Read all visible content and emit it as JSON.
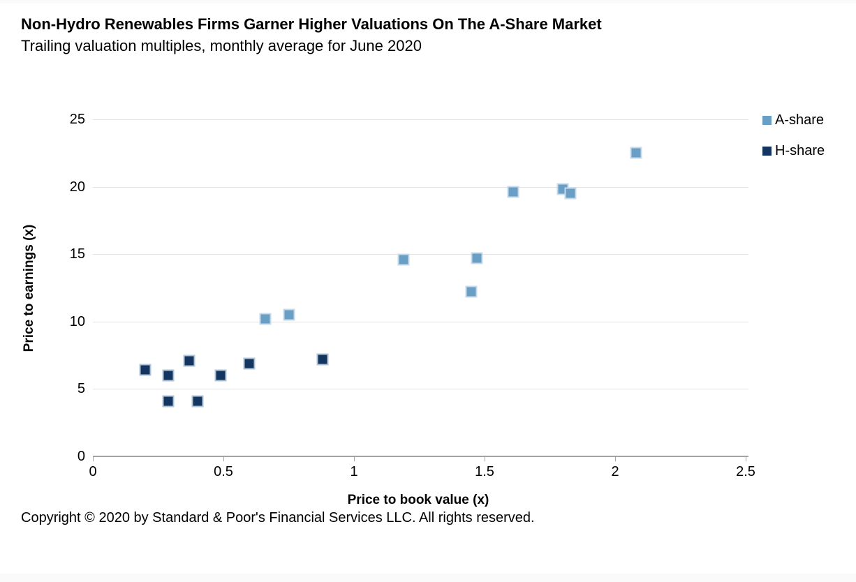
{
  "header": {
    "title": "Non-Hydro Renewables Firms Garner Higher Valuations On The A-Share Market",
    "subtitle": "Trailing valuation multiples, monthly average for June 2020"
  },
  "chart_data": {
    "type": "scatter",
    "title": "Non-Hydro Renewables Firms Garner Higher Valuations On The A-Share Market",
    "subtitle": "Trailing valuation multiples, monthly average for June 2020",
    "xlabel": "Price to book value (x)",
    "ylabel": "Price to earnings (x)",
    "xlim": [
      0,
      2.5
    ],
    "ylim": [
      0,
      25
    ],
    "x_ticks": [
      0,
      0.5,
      1,
      1.5,
      2,
      2.5
    ],
    "y_ticks": [
      0,
      5,
      10,
      15,
      20,
      25
    ],
    "grid": "horizontal gridlines only",
    "legend_position": "top-right outside plot",
    "marker": "square",
    "series": [
      {
        "name": "A-share",
        "color": "#6a9fc5",
        "border_color": "#c7daea",
        "points": [
          [
            0.66,
            10.2
          ],
          [
            0.75,
            10.5
          ],
          [
            1.19,
            14.6
          ],
          [
            1.45,
            12.2
          ],
          [
            1.47,
            14.7
          ],
          [
            1.61,
            19.6
          ],
          [
            1.8,
            19.8
          ],
          [
            1.83,
            19.5
          ],
          [
            2.08,
            22.5
          ]
        ]
      },
      {
        "name": "H-share",
        "color": "#14355f",
        "border_color": "#afc4d6",
        "points": [
          [
            0.2,
            6.4
          ],
          [
            0.29,
            6.0
          ],
          [
            0.29,
            4.1
          ],
          [
            0.37,
            7.1
          ],
          [
            0.4,
            4.1
          ],
          [
            0.49,
            6.0
          ],
          [
            0.6,
            6.9
          ],
          [
            0.88,
            7.2
          ]
        ]
      }
    ]
  },
  "footer": {
    "copyright": "Copyright © 2020 by Standard & Poor's Financial Services LLC. All rights reserved."
  }
}
